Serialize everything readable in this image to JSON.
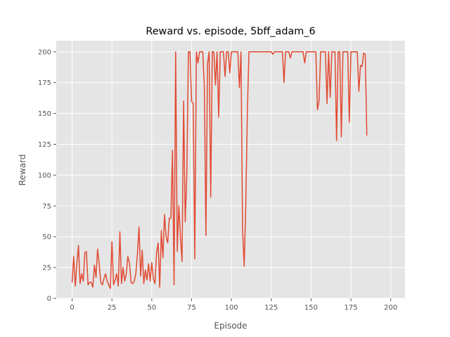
{
  "chart_data": {
    "type": "line",
    "title": "Reward vs. episode, 5bff_adam_6",
    "xlabel": "Episode",
    "ylabel": "Reward",
    "xlim": [
      -9.95,
      208.95
    ],
    "ylim": [
      0,
      209
    ],
    "xticks": [
      0,
      25,
      50,
      75,
      100,
      125,
      150,
      175,
      200
    ],
    "yticks": [
      0,
      25,
      50,
      75,
      100,
      125,
      150,
      175,
      200
    ],
    "grid": true,
    "colors": {
      "background": "#E5E5E5",
      "grid": "#FFFFFF",
      "line": "#E24A33"
    },
    "series": [
      {
        "values": [
          13,
          34,
          10,
          28,
          43,
          12,
          20,
          14,
          37,
          38,
          11,
          13,
          13,
          9,
          27,
          17,
          40,
          28,
          13,
          11,
          16,
          20,
          14,
          11,
          8,
          46,
          11,
          15,
          20,
          10,
          54,
          12,
          25,
          14,
          20,
          34,
          29,
          13,
          12,
          14,
          20,
          36,
          58,
          18,
          39,
          12,
          23,
          15,
          28,
          14,
          29,
          16,
          12,
          37,
          45,
          9,
          55,
          33,
          68,
          50,
          45,
          65,
          65,
          120,
          11,
          200,
          38,
          75,
          50,
          30,
          160,
          62,
          100,
          200,
          200,
          160,
          158,
          32,
          200,
          191,
          200,
          200,
          200,
          172,
          51,
          190,
          200,
          82,
          200,
          200,
          173,
          200,
          147,
          200,
          200,
          200,
          180,
          200,
          200,
          183,
          200,
          200,
          200,
          200,
          200,
          171,
          200,
          56,
          26,
          75,
          150,
          200,
          200,
          200,
          200,
          200,
          200,
          200,
          200,
          200,
          200,
          200,
          200,
          200,
          200,
          200,
          198,
          200,
          200,
          200,
          200,
          200,
          200,
          175,
          200,
          200,
          200,
          195,
          200,
          200,
          200,
          200,
          200,
          200,
          200,
          200,
          191,
          200,
          200,
          200,
          200,
          200,
          200,
          200,
          153,
          160,
          200,
          200,
          200,
          200,
          158,
          200,
          163,
          200,
          200,
          200,
          128,
          200,
          200,
          131,
          200,
          200,
          200,
          200,
          143,
          200,
          200,
          200,
          200,
          200,
          168,
          189,
          188,
          199,
          198,
          132
        ]
      }
    ]
  }
}
